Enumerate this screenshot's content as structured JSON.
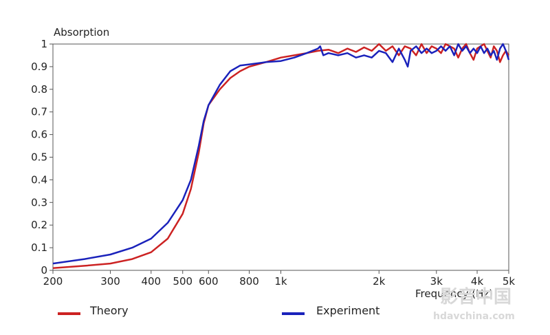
{
  "chart_data": {
    "type": "line",
    "title": "",
    "ylabel": "Absorption",
    "xlabel": "Frequency  (Hz)",
    "xscale": "log",
    "xlim": [
      200,
      5000
    ],
    "ylim": [
      0,
      1
    ],
    "grid": false,
    "legend_placement": "bottom",
    "x_ticks": [
      {
        "value": 200,
        "label": "200"
      },
      {
        "value": 300,
        "label": "300"
      },
      {
        "value": 400,
        "label": "400"
      },
      {
        "value": 500,
        "label": "500"
      },
      {
        "value": 600,
        "label": "600"
      },
      {
        "value": 800,
        "label": "800"
      },
      {
        "value": 1000,
        "label": "1k"
      },
      {
        "value": 2000,
        "label": "2k"
      },
      {
        "value": 3000,
        "label": "3k"
      },
      {
        "value": 4000,
        "label": "4k"
      },
      {
        "value": 5000,
        "label": "5k"
      }
    ],
    "y_ticks": [
      {
        "value": 0,
        "label": "0"
      },
      {
        "value": 0.1,
        "label": "0.1"
      },
      {
        "value": 0.2,
        "label": "0.2"
      },
      {
        "value": 0.3,
        "label": "0.3"
      },
      {
        "value": 0.4,
        "label": "0.4"
      },
      {
        "value": 0.5,
        "label": "0.5"
      },
      {
        "value": 0.6,
        "label": "0.6"
      },
      {
        "value": 0.7,
        "label": "0.7"
      },
      {
        "value": 0.8,
        "label": "0.8"
      },
      {
        "value": 0.9,
        "label": "0.9"
      },
      {
        "value": 1,
        "label": "1"
      }
    ],
    "series": [
      {
        "name": "Theory",
        "color": "#cc2222",
        "points": [
          [
            200,
            0.01
          ],
          [
            250,
            0.02
          ],
          [
            300,
            0.03
          ],
          [
            350,
            0.05
          ],
          [
            400,
            0.08
          ],
          [
            450,
            0.14
          ],
          [
            500,
            0.25
          ],
          [
            530,
            0.36
          ],
          [
            560,
            0.52
          ],
          [
            580,
            0.65
          ],
          [
            600,
            0.73
          ],
          [
            650,
            0.8
          ],
          [
            700,
            0.85
          ],
          [
            750,
            0.88
          ],
          [
            800,
            0.9
          ],
          [
            900,
            0.92
          ],
          [
            1000,
            0.94
          ],
          [
            1100,
            0.95
          ],
          [
            1200,
            0.96
          ],
          [
            1300,
            0.97
          ],
          [
            1400,
            0.975
          ],
          [
            1500,
            0.96
          ],
          [
            1600,
            0.98
          ],
          [
            1700,
            0.965
          ],
          [
            1800,
            0.985
          ],
          [
            1900,
            0.97
          ],
          [
            2000,
            1.0
          ],
          [
            2100,
            0.97
          ],
          [
            2200,
            0.99
          ],
          [
            2300,
            0.95
          ],
          [
            2400,
            0.99
          ],
          [
            2500,
            0.98
          ],
          [
            2600,
            0.95
          ],
          [
            2700,
            1.0
          ],
          [
            2800,
            0.96
          ],
          [
            2900,
            0.99
          ],
          [
            3000,
            0.98
          ],
          [
            3100,
            0.96
          ],
          [
            3200,
            1.0
          ],
          [
            3300,
            0.99
          ],
          [
            3400,
            0.98
          ],
          [
            3500,
            0.94
          ],
          [
            3600,
            0.98
          ],
          [
            3700,
            1.0
          ],
          [
            3800,
            0.96
          ],
          [
            3900,
            0.93
          ],
          [
            4000,
            0.98
          ],
          [
            4100,
            0.99
          ],
          [
            4200,
            1.0
          ],
          [
            4300,
            0.97
          ],
          [
            4400,
            0.94
          ],
          [
            4500,
            0.99
          ],
          [
            4600,
            0.97
          ],
          [
            4700,
            0.92
          ],
          [
            4800,
            0.95
          ],
          [
            4900,
            0.97
          ],
          [
            5000,
            0.95
          ]
        ]
      },
      {
        "name": "Experiment",
        "color": "#1a22bb",
        "points": [
          [
            200,
            0.03
          ],
          [
            250,
            0.05
          ],
          [
            300,
            0.07
          ],
          [
            350,
            0.1
          ],
          [
            400,
            0.14
          ],
          [
            450,
            0.21
          ],
          [
            500,
            0.31
          ],
          [
            530,
            0.4
          ],
          [
            560,
            0.55
          ],
          [
            580,
            0.66
          ],
          [
            600,
            0.73
          ],
          [
            650,
            0.82
          ],
          [
            700,
            0.88
          ],
          [
            750,
            0.905
          ],
          [
            800,
            0.91
          ],
          [
            900,
            0.92
          ],
          [
            1000,
            0.925
          ],
          [
            1100,
            0.94
          ],
          [
            1200,
            0.96
          ],
          [
            1300,
            0.98
          ],
          [
            1320,
            0.99
          ],
          [
            1350,
            0.95
          ],
          [
            1400,
            0.96
          ],
          [
            1500,
            0.95
          ],
          [
            1600,
            0.96
          ],
          [
            1700,
            0.94
          ],
          [
            1800,
            0.95
          ],
          [
            1900,
            0.94
          ],
          [
            2000,
            0.97
          ],
          [
            2100,
            0.96
          ],
          [
            2200,
            0.92
          ],
          [
            2300,
            0.98
          ],
          [
            2400,
            0.93
          ],
          [
            2450,
            0.9
          ],
          [
            2500,
            0.97
          ],
          [
            2600,
            0.99
          ],
          [
            2700,
            0.96
          ],
          [
            2800,
            0.98
          ],
          [
            2900,
            0.96
          ],
          [
            3000,
            0.97
          ],
          [
            3100,
            0.99
          ],
          [
            3200,
            0.97
          ],
          [
            3300,
            0.99
          ],
          [
            3400,
            0.95
          ],
          [
            3500,
            1.0
          ],
          [
            3600,
            0.97
          ],
          [
            3700,
            0.99
          ],
          [
            3800,
            0.96
          ],
          [
            3900,
            0.98
          ],
          [
            4000,
            0.96
          ],
          [
            4100,
            0.99
          ],
          [
            4200,
            0.96
          ],
          [
            4300,
            0.98
          ],
          [
            4400,
            0.95
          ],
          [
            4500,
            0.97
          ],
          [
            4600,
            0.93
          ],
          [
            4700,
            0.98
          ],
          [
            4800,
            1.0
          ],
          [
            4900,
            0.97
          ],
          [
            5000,
            0.93
          ]
        ]
      }
    ]
  },
  "legend": {
    "items": [
      {
        "label": "Theory",
        "color": "#cc2222"
      },
      {
        "label": "Experiment",
        "color": "#1a22bb"
      }
    ]
  },
  "watermark": {
    "logo_text": "影音中国",
    "url_text": "hdavchina.com"
  }
}
